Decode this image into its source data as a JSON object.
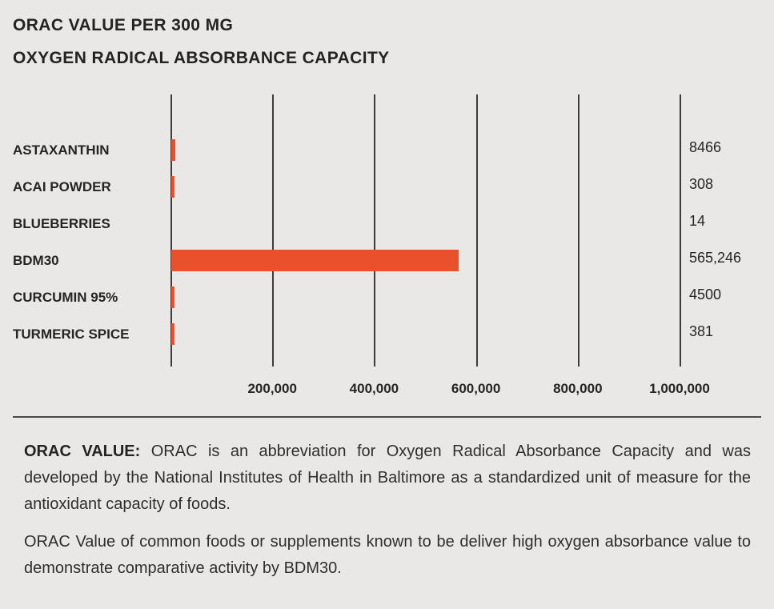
{
  "colors": {
    "background": "#eae8e6",
    "bar": "#e8512b",
    "gridline": "#3d3c3b",
    "text": "#262524"
  },
  "title": {
    "line1": "ORAC VALUE PER 300 MG",
    "line2": "OXYGEN RADICAL ABSORBANCE CAPACITY"
  },
  "chart_data": {
    "type": "bar",
    "orientation": "horizontal",
    "title": "ORAC VALUE PER 300 MG",
    "subtitle": "OXYGEN RADICAL ABSORBANCE CAPACITY",
    "categories": [
      "ASTAXANTHIN",
      "ACAI POWDER",
      "BLUEBERRIES",
      "BDM30",
      "CURCUMIN 95%",
      "TURMERIC SPICE"
    ],
    "values": [
      8466,
      308,
      14,
      565246,
      4500,
      381
    ],
    "value_labels": [
      "8466",
      "308",
      "14",
      "565,246",
      "4500",
      "381"
    ],
    "x_ticks": [
      200000,
      400000,
      600000,
      800000,
      1000000
    ],
    "x_tick_labels": [
      "200,000",
      "400,000",
      "600,000",
      "800,000",
      "1,000,000"
    ],
    "xlim": [
      0,
      1000000
    ],
    "grid": true,
    "legend": "none",
    "bar_color": "#e8512b"
  },
  "footer": {
    "para1_bold": "ORAC VALUE:",
    "para1_rest": " ORAC is an abbreviation for Oxygen Radical Absorbance Capacity and was developed by the National Institutes of Health in Baltimore as a standardized unit of measure for the antioxidant capacity of foods.",
    "para2": "ORAC Value of common foods or supplements known to be deliver high oxygen absorbance value to demonstrate comparative activity by BDM30."
  }
}
